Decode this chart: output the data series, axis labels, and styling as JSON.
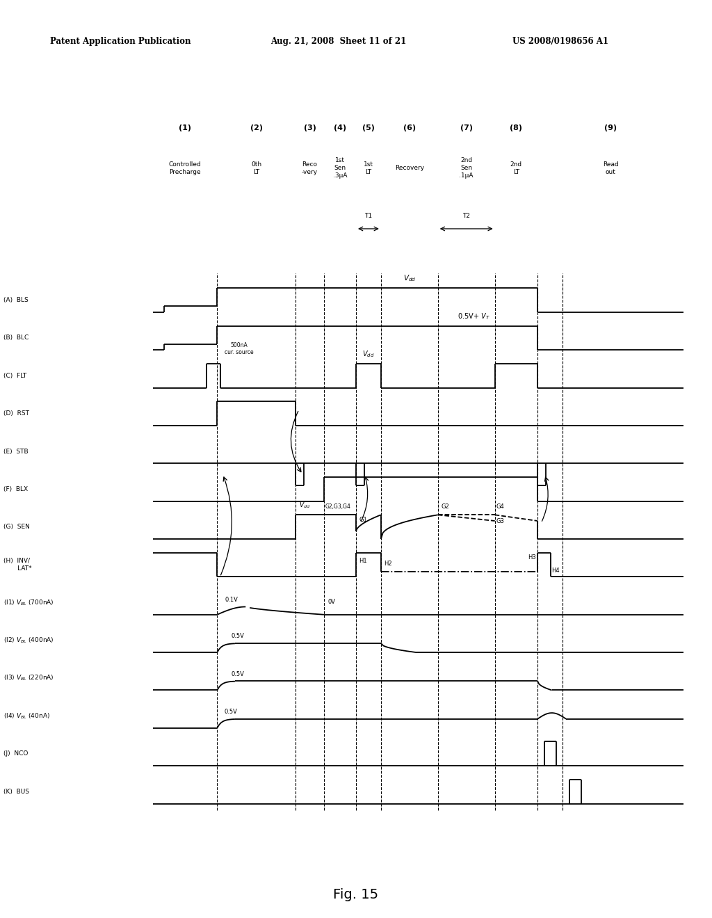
{
  "header_left": "Patent Application Publication",
  "header_mid": "Aug. 21, 2008  Sheet 11 of 21",
  "header_right": "US 2008/0198656 A1",
  "fig_label": "Fig. 15",
  "background": "#ffffff",
  "vx": [
    0.305,
    0.415,
    0.455,
    0.5,
    0.535,
    0.615,
    0.695,
    0.755,
    0.79
  ]
}
